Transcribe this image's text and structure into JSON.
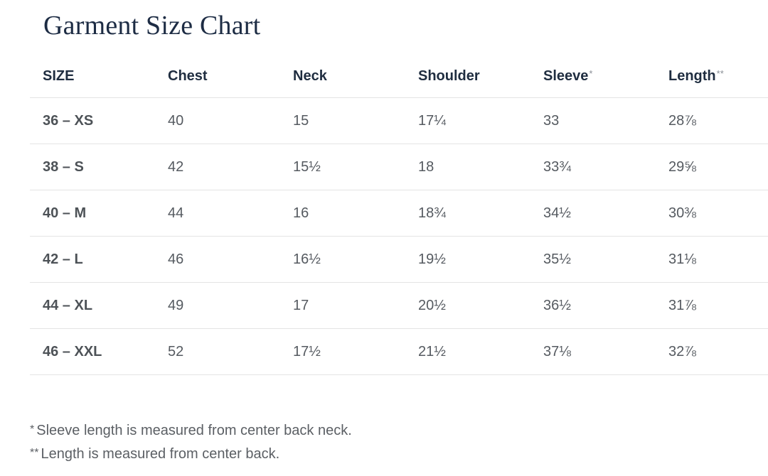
{
  "title": "Garment Size Chart",
  "table": {
    "headers": [
      {
        "label": "SIZE",
        "mark": ""
      },
      {
        "label": "Chest",
        "mark": ""
      },
      {
        "label": "Neck",
        "mark": ""
      },
      {
        "label": "Shoulder",
        "mark": ""
      },
      {
        "label": "Sleeve",
        "mark": "*"
      },
      {
        "label": "Length",
        "mark": "**"
      }
    ],
    "rows": [
      [
        "36 – XS",
        "40",
        "15",
        "17¼",
        "33",
        "28⅞"
      ],
      [
        "38 – S",
        "42",
        "15½",
        "18",
        "33¾",
        "29⅝"
      ],
      [
        "40 – M",
        "44",
        "16",
        "18¾",
        "34½",
        "30⅜"
      ],
      [
        "42 – L",
        "46",
        "16½",
        "19½",
        "35½",
        "31⅛"
      ],
      [
        "44 – XL",
        "49",
        "17",
        "20½",
        "36½",
        "31⅞"
      ],
      [
        "46 – XXL",
        "52",
        "17½",
        "21½",
        "37⅛",
        "32⅞"
      ]
    ]
  },
  "footnotes": [
    {
      "mark": "*",
      "text": "Sleeve length is measured from center back neck."
    },
    {
      "mark": "**",
      "text": "Length is measured from center back."
    }
  ]
}
